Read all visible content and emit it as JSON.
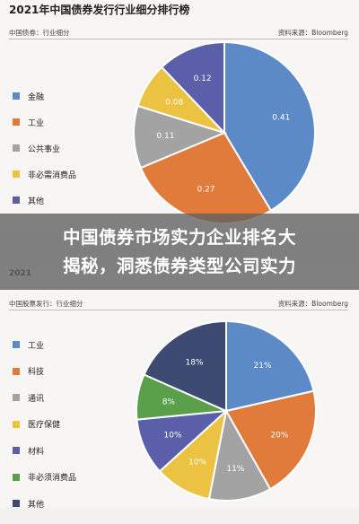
{
  "chart_data": [
    {
      "type": "pie",
      "title": "2021年中国债券发行行业细分排行榜",
      "subtitle": "中国债券：行业细分",
      "source": "资料来源：Bloomberg",
      "categories": [
        "金融",
        "工业",
        "公共事业",
        "非必需消费品",
        "其他"
      ],
      "values": [
        0.41,
        0.27,
        0.11,
        0.08,
        0.12
      ],
      "value_labels": [
        "0.41",
        "0.27",
        "0.11",
        "0.08",
        "0.12"
      ],
      "colors": [
        "#5b8ac7",
        "#e07b3b",
        "#a3a3a3",
        "#ecc242",
        "#5b5ea8"
      ],
      "legend_position": "left"
    },
    {
      "type": "pie",
      "title": "2021",
      "subtitle": "中国股票发行：行业细分",
      "source": "资料来源：Bloomberg",
      "categories": [
        "工业",
        "科技",
        "通讯",
        "医疗保健",
        "材料",
        "非必须消费品",
        "其他"
      ],
      "values": [
        21,
        20,
        11,
        10,
        10,
        8,
        18
      ],
      "value_labels": [
        "21%",
        "20%",
        "11%",
        "10%",
        "10%",
        "8%",
        "18%"
      ],
      "colors": [
        "#5b8ac7",
        "#e07b3b",
        "#a3a3a3",
        "#ecc242",
        "#5b5ea8",
        "#5aa04a",
        "#3d4b73"
      ],
      "legend_position": "left"
    }
  ],
  "banner": {
    "line1": "中国债券市场实力企业排名大",
    "line2": "揭秘，洞悉债券类型公司实力"
  }
}
